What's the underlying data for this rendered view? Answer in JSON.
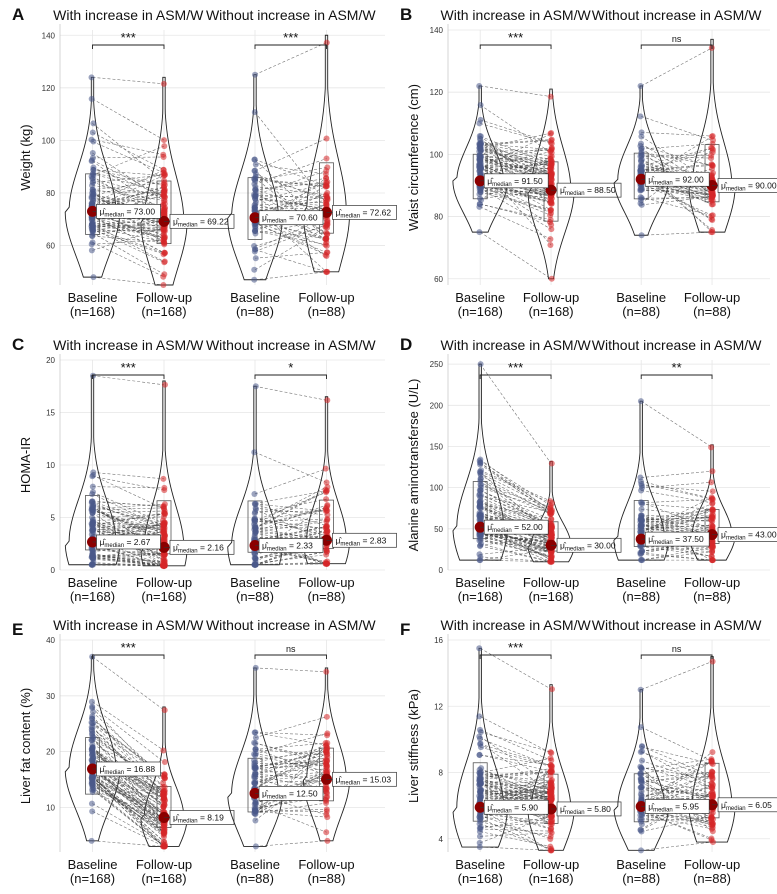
{
  "colors": {
    "baseline": "#4a5a8a",
    "followup": "#d62728",
    "median_marker": "#8b0000",
    "grid": "#e6e6e6",
    "dashed": "#444444"
  },
  "chart_data": [
    {
      "type": "violin",
      "panel": "A",
      "ylabel": "Weight (kg)",
      "ylim": [
        45,
        142
      ],
      "yticks": [
        60,
        80,
        100,
        120,
        140
      ],
      "groups": [
        {
          "title": "With  increase in ASM/W",
          "n": 168,
          "significance": "***",
          "baseline": {
            "label": "Baseline",
            "n_label": "(n=168)",
            "median": 73.0,
            "median_label": "73.00",
            "min": 48,
            "max": 124
          },
          "followup": {
            "label": "Follow-up",
            "n_label": "(n=168)",
            "median": 69.22,
            "median_label": "69.22",
            "min": 45,
            "max": 124
          }
        },
        {
          "title": "Without  increase in ASM/W",
          "n": 88,
          "significance": "***",
          "baseline": {
            "label": "Baseline",
            "n_label": "(n=88)",
            "median": 70.6,
            "median_label": "70.60",
            "min": 47,
            "max": 125
          },
          "followup": {
            "label": "Follow-up",
            "n_label": "(n=88)",
            "median": 72.62,
            "median_label": "72.62",
            "min": 50,
            "max": 140
          }
        }
      ]
    },
    {
      "type": "violin",
      "panel": "B",
      "ylabel": "Waist circumference (cm)",
      "ylim": [
        58,
        140
      ],
      "yticks": [
        60,
        80,
        100,
        120,
        140
      ],
      "groups": [
        {
          "title": "With  increase in ASM/W",
          "n": 168,
          "significance": "***",
          "baseline": {
            "label": "Baseline",
            "n_label": "(n=168)",
            "median": 91.5,
            "median_label": "91.50",
            "min": 75,
            "max": 122
          },
          "followup": {
            "label": "Follow-up",
            "n_label": "(n=168)",
            "median": 88.5,
            "median_label": "88.50",
            "min": 60,
            "max": 121
          }
        },
        {
          "title": "Without  increase in ASM/W",
          "n": 88,
          "significance": "ns",
          "baseline": {
            "label": "Baseline",
            "n_label": "(n=88)",
            "median": 92.0,
            "median_label": "92.00",
            "min": 74,
            "max": 122
          },
          "followup": {
            "label": "Follow-up",
            "n_label": "(n=88)",
            "median": 90.0,
            "median_label": "90.00",
            "min": 75,
            "max": 137
          }
        }
      ]
    },
    {
      "type": "violin",
      "panel": "C",
      "ylabel": "HOMA-IR",
      "ylim": [
        0,
        20
      ],
      "yticks": [
        0,
        5,
        10,
        15,
        20
      ],
      "groups": [
        {
          "title": "With  increase in ASM/W",
          "n": 168,
          "significance": "***",
          "baseline": {
            "label": "Baseline",
            "n_label": "(n=168)",
            "median": 2.67,
            "median_label": "2.67",
            "min": 0.5,
            "max": 18.5
          },
          "followup": {
            "label": "Follow-up",
            "n_label": "(n=168)",
            "median": 2.16,
            "median_label": "2.16",
            "min": 0.4,
            "max": 18
          }
        },
        {
          "title": "Without  increase in ASM/W",
          "n": 88,
          "significance": "*",
          "baseline": {
            "label": "Baseline",
            "n_label": "(n=88)",
            "median": 2.33,
            "median_label": "2.33",
            "min": 0.5,
            "max": 17.5
          },
          "followup": {
            "label": "Follow-up",
            "n_label": "(n=88)",
            "median": 2.83,
            "median_label": "2.83",
            "min": 0.6,
            "max": 16.5
          }
        }
      ]
    },
    {
      "type": "violin",
      "panel": "D",
      "ylabel": "Alanine aminotransferse (U/L)",
      "ylim": [
        0,
        255
      ],
      "yticks": [
        0,
        50,
        100,
        150,
        200,
        250
      ],
      "groups": [
        {
          "title": "With  increase in ASM/W",
          "n": 168,
          "significance": "***",
          "baseline": {
            "label": "Baseline",
            "n_label": "(n=168)",
            "median": 52.0,
            "median_label": "52.00",
            "min": 12,
            "max": 250
          },
          "followup": {
            "label": "Follow-up",
            "n_label": "(n=168)",
            "median": 30.0,
            "median_label": "30.00",
            "min": 10,
            "max": 132
          }
        },
        {
          "title": "Without  increase in ASM/W",
          "n": 88,
          "significance": "**",
          "baseline": {
            "label": "Baseline",
            "n_label": "(n=88)",
            "median": 37.5,
            "median_label": "37.50",
            "min": 12,
            "max": 205
          },
          "followup": {
            "label": "Follow-up",
            "n_label": "(n=88)",
            "median": 43.0,
            "median_label": "43.00",
            "min": 12,
            "max": 152
          }
        }
      ]
    },
    {
      "type": "violin",
      "panel": "E",
      "ylabel": "Liver fat content (%)",
      "ylim": [
        2,
        40
      ],
      "yticks": [
        10,
        20,
        30,
        40
      ],
      "groups": [
        {
          "title": "With  increase in ASM/W",
          "n": 168,
          "significance": "***",
          "baseline": {
            "label": "Baseline",
            "n_label": "(n=168)",
            "median": 16.88,
            "median_label": "16.88",
            "min": 4,
            "max": 37
          },
          "followup": {
            "label": "Follow-up",
            "n_label": "(n=168)",
            "median": 8.19,
            "median_label": "8.19",
            "min": 3,
            "max": 28
          }
        },
        {
          "title": "Without  increase in ASM/W",
          "n": 88,
          "significance": "ns",
          "baseline": {
            "label": "Baseline",
            "n_label": "(n=88)",
            "median": 12.5,
            "median_label": "12.50",
            "min": 3,
            "max": 35
          },
          "followup": {
            "label": "Follow-up",
            "n_label": "(n=88)",
            "median": 15.03,
            "median_label": "15.03",
            "min": 4,
            "max": 35
          }
        }
      ]
    },
    {
      "type": "violin",
      "panel": "F",
      "ylabel": "Liver stiffness (kPa)",
      "ylim": [
        3.2,
        16
      ],
      "yticks": [
        4,
        8,
        12,
        16
      ],
      "groups": [
        {
          "title": "With  increase in ASM/W",
          "n": 168,
          "significance": "***",
          "baseline": {
            "label": "Baseline",
            "n_label": "(n=168)",
            "median": 5.9,
            "median_label": "5.90",
            "min": 3.5,
            "max": 15.5
          },
          "followup": {
            "label": "Follow-up",
            "n_label": "(n=168)",
            "median": 5.8,
            "median_label": "5.80",
            "min": 3.3,
            "max": 13.3
          }
        },
        {
          "title": "Without  increase in ASM/W",
          "n": 88,
          "significance": "ns",
          "baseline": {
            "label": "Baseline",
            "n_label": "(n=88)",
            "median": 5.95,
            "median_label": "5.95",
            "min": 3.3,
            "max": 13
          },
          "followup": {
            "label": "Follow-up",
            "n_label": "(n=88)",
            "median": 6.05,
            "median_label": "6.05",
            "min": 3.8,
            "max": 15
          }
        }
      ]
    }
  ]
}
